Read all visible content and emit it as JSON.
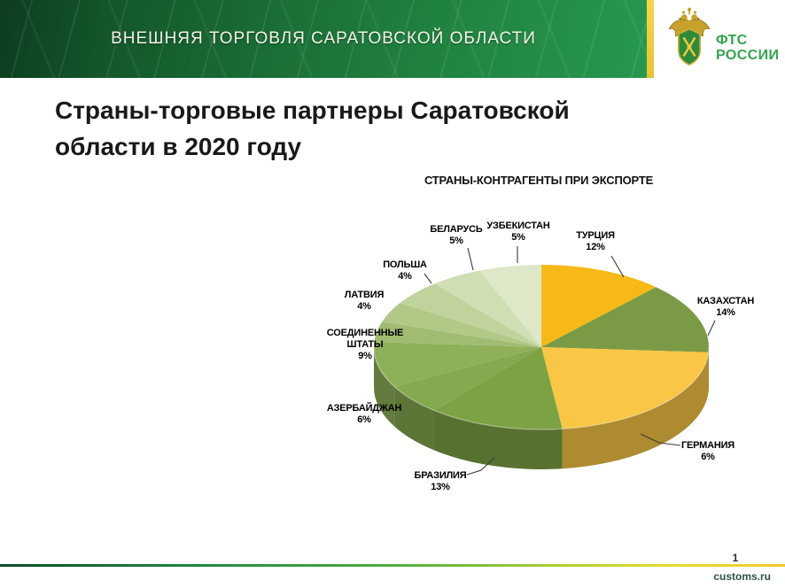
{
  "header": {
    "banner_title": "ВНЕШНЯЯ ТОРГОВЛЯ САРАТОВСКОЙ ОБЛАСТИ",
    "logo": {
      "line1": "ФТС",
      "line2": "РОССИИ"
    },
    "colors": {
      "banner_dark_green": "#0c3d1f",
      "banner_light_green": "#27984e",
      "accent_strip_yellow": "#f2cc3d",
      "logo_green": "#35a34e"
    }
  },
  "slide": {
    "title": "Страны-торговые партнеры Саратовской\nобласти в 2020 году",
    "page_number": "1",
    "footer_site": "customs.ru"
  },
  "chart_data": {
    "type": "pie",
    "style": "3d",
    "title": "СТРАНЫ-КОНТРАГЕНТЫ ПРИ ЭКСПОРТЕ",
    "values_are_percent": true,
    "start_angle_deg_clockwise_from_top": 0,
    "legend_position": "callouts-around-pie",
    "slices": [
      {
        "key": "turkey",
        "label": "ТУРЦИЯ",
        "value": 12,
        "value_text": "12%",
        "color": "#F7B918",
        "labeled": true
      },
      {
        "key": "kazakhstan",
        "label": "КАЗАХСТАН",
        "value": 14,
        "value_text": "14%",
        "color": "#7B9A45",
        "labeled": true
      },
      {
        "key": "others",
        "label": "",
        "value": 22,
        "value_text": "",
        "color": "#F9C645",
        "labeled": false
      },
      {
        "key": "brazil",
        "label": "БРАЗИЛИЯ",
        "value": 13,
        "value_text": "13%",
        "color": "#7CA244",
        "labeled": true
      },
      {
        "key": "azerbaijan",
        "label": "АЗЕРБАЙДЖАН",
        "value": 6,
        "value_text": "6%",
        "color": "#84A94E",
        "labeled": true
      },
      {
        "key": "usa",
        "label": "СОЕДИНЕННЫЕ\nШТАТЫ",
        "value": 9,
        "value_text": "9%",
        "color": "#8DB058",
        "labeled": true
      },
      {
        "key": "latvia",
        "label": "ЛАТВИЯ",
        "value": 4,
        "value_text": "4%",
        "color": "#A0BC72",
        "labeled": true
      },
      {
        "key": "poland",
        "label": "ПОЛЬША",
        "value": 4,
        "value_text": "4%",
        "color": "#B1C887",
        "labeled": true
      },
      {
        "key": "belarus",
        "label": "БЕЛАРУСЬ",
        "value": 5,
        "value_text": "5%",
        "color": "#C1D39C",
        "labeled": true
      },
      {
        "key": "uzbekistan",
        "label": "УЗБЕКИСТАН",
        "value": 5,
        "value_text": "5%",
        "color": "#D0DEB3",
        "labeled": true
      },
      {
        "key": "germany",
        "label": "ГЕРМАНИЯ",
        "value": 6,
        "value_text": "6%",
        "color": "#DEE7C8",
        "labeled": true
      }
    ]
  }
}
